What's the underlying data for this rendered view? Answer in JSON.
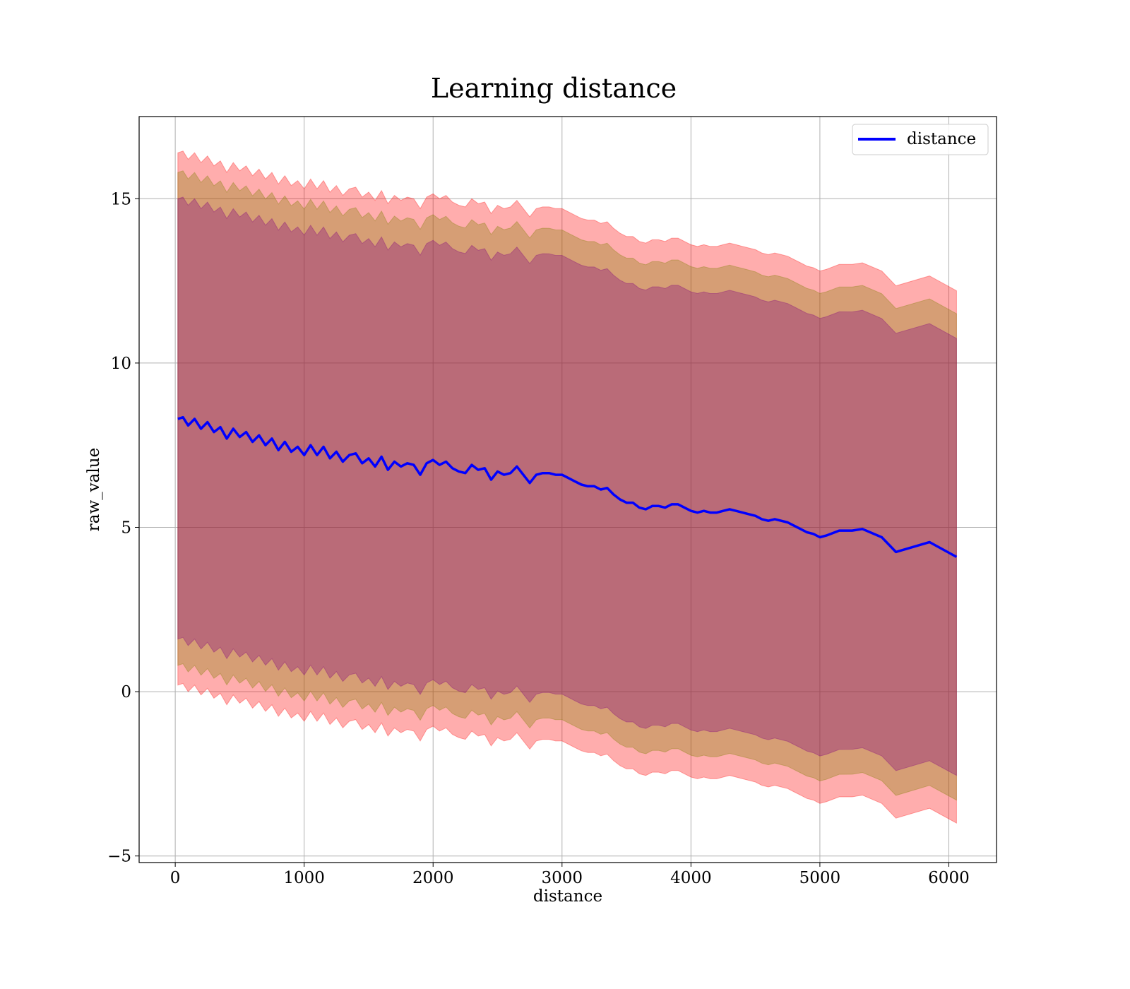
{
  "chart_data": {
    "type": "line",
    "title": "Learning distance",
    "xlabel": "distance",
    "ylabel": "raw_value",
    "xlim": [
      -280,
      6370
    ],
    "ylim": [
      -5.2,
      17.5
    ],
    "x_ticks": [
      0,
      1000,
      2000,
      3000,
      4000,
      5000,
      6000
    ],
    "x_tick_labels": [
      "0",
      "1000",
      "2000",
      "3000",
      "4000",
      "5000",
      "6000"
    ],
    "y_ticks": [
      -5,
      0,
      5,
      10,
      15
    ],
    "y_tick_labels": [
      "−5",
      "0",
      "5",
      "10",
      "15"
    ],
    "grid": true,
    "legend": {
      "position": "top-right",
      "entries": [
        "distance"
      ]
    },
    "colors": {
      "line": "#0000ff",
      "outer_band": "#ff0000",
      "outer_band_alpha": 0.32,
      "middle_band": "#808000",
      "middle_band_alpha": 0.32,
      "inner_band": "#800080",
      "inner_band_alpha": 0.32
    },
    "bands": [
      {
        "name": "outer",
        "half_width": [
          8.1,
          8.1
        ]
      },
      {
        "name": "middle",
        "half_width": [
          7.5,
          7.4
        ]
      },
      {
        "name": "inner",
        "half_width": [
          6.7,
          6.65
        ]
      }
    ],
    "series": [
      {
        "name": "distance",
        "x": [
          20,
          60,
          100,
          150,
          200,
          250,
          300,
          350,
          400,
          450,
          500,
          550,
          600,
          650,
          700,
          750,
          800,
          850,
          900,
          950,
          1000,
          1050,
          1100,
          1150,
          1200,
          1250,
          1300,
          1350,
          1400,
          1450,
          1500,
          1550,
          1600,
          1650,
          1700,
          1750,
          1800,
          1850,
          1900,
          1950,
          2000,
          2050,
          2100,
          2150,
          2200,
          2250,
          2300,
          2350,
          2400,
          2450,
          2500,
          2550,
          2600,
          2650,
          2700,
          2750,
          2800,
          2850,
          2900,
          2950,
          3000,
          3050,
          3100,
          3150,
          3200,
          3250,
          3300,
          3350,
          3400,
          3450,
          3500,
          3550,
          3600,
          3650,
          3700,
          3750,
          3800,
          3850,
          3900,
          3950,
          4000,
          4050,
          4100,
          4150,
          4200,
          4250,
          4300,
          4350,
          4400,
          4450,
          4500,
          4550,
          4600,
          4650,
          4700,
          4750,
          4800,
          4850,
          4900,
          4950,
          5000,
          5050,
          5150,
          5250,
          5330,
          5480,
          5590,
          5850,
          6060
        ],
        "y": [
          8.3,
          8.35,
          8.1,
          8.3,
          8.0,
          8.2,
          7.9,
          8.05,
          7.7,
          8.0,
          7.75,
          7.9,
          7.6,
          7.8,
          7.5,
          7.7,
          7.35,
          7.6,
          7.3,
          7.45,
          7.2,
          7.5,
          7.2,
          7.45,
          7.1,
          7.3,
          7.0,
          7.2,
          7.25,
          6.95,
          7.1,
          6.85,
          7.15,
          6.75,
          7.0,
          6.85,
          6.95,
          6.9,
          6.6,
          6.95,
          7.05,
          6.9,
          7.0,
          6.8,
          6.7,
          6.65,
          6.9,
          6.75,
          6.8,
          6.45,
          6.7,
          6.6,
          6.65,
          6.85,
          6.6,
          6.35,
          6.6,
          6.65,
          6.65,
          6.6,
          6.6,
          6.5,
          6.4,
          6.3,
          6.25,
          6.25,
          6.15,
          6.2,
          6.0,
          5.85,
          5.75,
          5.75,
          5.6,
          5.55,
          5.65,
          5.65,
          5.6,
          5.7,
          5.7,
          5.6,
          5.5,
          5.45,
          5.5,
          5.45,
          5.45,
          5.5,
          5.55,
          5.5,
          5.45,
          5.4,
          5.35,
          5.25,
          5.2,
          5.25,
          5.2,
          5.15,
          5.05,
          4.95,
          4.85,
          4.8,
          4.7,
          4.75,
          4.9,
          4.9,
          4.95,
          4.7,
          4.25,
          4.55,
          4.1
        ]
      }
    ]
  }
}
